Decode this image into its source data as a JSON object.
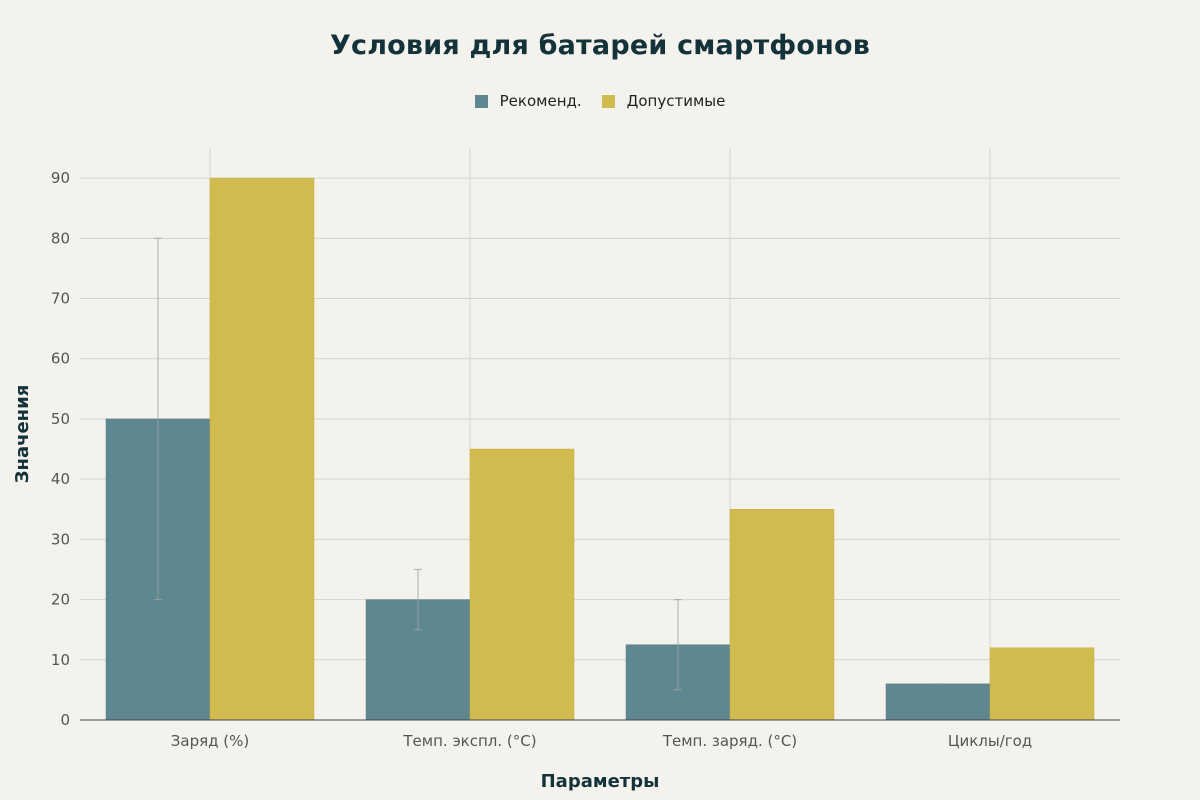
{
  "chart_data": {
    "type": "bar",
    "title": "Условия для батарей смартфонов",
    "xlabel": "Параметры",
    "ylabel": "Значения",
    "ylim": [
      0,
      95
    ],
    "yticks": [
      0,
      10,
      20,
      30,
      40,
      50,
      60,
      70,
      80,
      90
    ],
    "grid": true,
    "legend_position": "top-center",
    "categories": [
      "Заряд (%)",
      "Темп. экспл. (°C)",
      "Темп. заряд. (°C)",
      "Циклы/год"
    ],
    "series": [
      {
        "name": "Рекоменд.",
        "color": "#5e8790",
        "values": [
          50,
          20,
          12.5,
          6
        ],
        "error_low": [
          20,
          15,
          5,
          6
        ],
        "error_high": [
          80,
          25,
          20,
          6
        ]
      },
      {
        "name": "Допустимые",
        "color": "#d1ba4e",
        "values": [
          90,
          45,
          35,
          12
        ]
      }
    ]
  }
}
